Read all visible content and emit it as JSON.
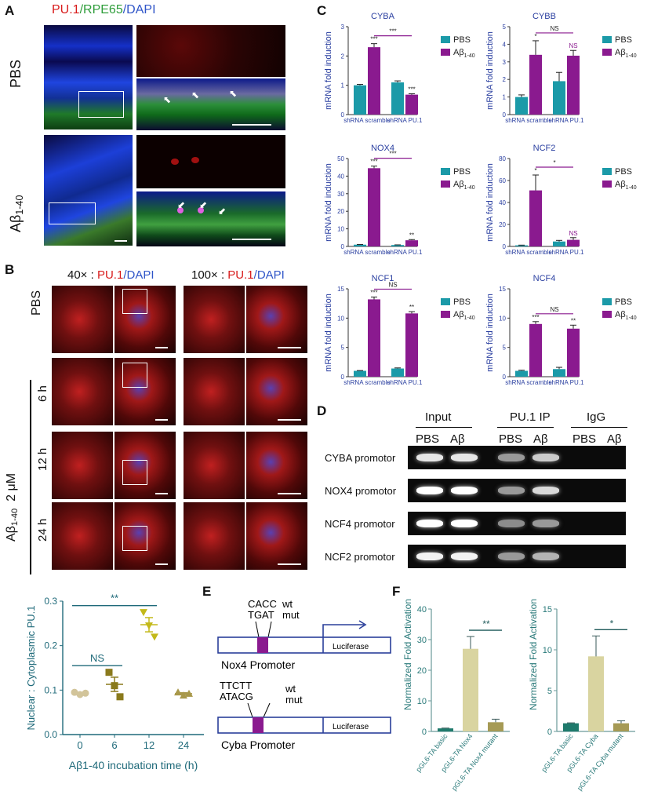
{
  "panelA": {
    "letter": "A",
    "title_parts": [
      "PU.1",
      "/RPE65",
      "/DAPI"
    ],
    "row1_label": "PBS",
    "row2_label_main": "Aβ",
    "row2_label_sub": "1-40"
  },
  "panelB": {
    "letter": "B",
    "h40_mag": "40× : ",
    "h40_pu1": "PU.1",
    "h40_dapi": "/DAPI",
    "h100_mag": "100× : ",
    "h100_pu1": "PU.1",
    "h100_dapi": "/DAPI",
    "rows": [
      "PBS",
      "6 h",
      "12 h",
      "24 h"
    ],
    "side_main": "Aβ",
    "side_sub": "1-40",
    "side_conc": "2 μM"
  },
  "panelC": {
    "letter": "C"
  },
  "panelD": {
    "letter": "D",
    "groups": [
      "Input",
      "PU.1 IP",
      "IgG"
    ],
    "lanes": [
      "PBS",
      "Aβ",
      "PBS",
      "Aβ",
      "PBS",
      "Aβ"
    ],
    "rows": [
      "CYBA promotor",
      "NOX4 promotor",
      "NCF4 promotor",
      "NCF2 promotor"
    ]
  },
  "panelE": {
    "letter": "E",
    "nox4_wt_seq": "CACC",
    "nox4_mut_seq": "TGAT",
    "cyba_wt_seq": "TTCTT",
    "cyba_mut_seq": "ATACG",
    "wt": "wt",
    "mut": "mut",
    "luciferase": "Luciferase",
    "nox4_promoter": "Nox4 Promoter",
    "cyba_promoter": "Cyba Promoter"
  },
  "panelF": {
    "letter": "F"
  },
  "chart_data": [
    {
      "id": "cyba",
      "type": "bar",
      "title": "CYBA",
      "ylabel": "mRNA fold induction",
      "ylim": [
        0,
        3
      ],
      "yticks": [
        0,
        1,
        2,
        3
      ],
      "categories": [
        "shRNA scramble",
        "shRNA PU.1"
      ],
      "series": [
        {
          "name": "PBS",
          "color": "#1b9aa8",
          "values": [
            1.0,
            1.1
          ],
          "errors": [
            0.03,
            0.05
          ],
          "sig": [
            "",
            ""
          ]
        },
        {
          "name": "Aβ1-40",
          "color": "#8a1a8f",
          "values": [
            2.3,
            0.68
          ],
          "errors": [
            0.12,
            0.03
          ],
          "sig": [
            "***",
            "***"
          ]
        }
      ],
      "bracket": "***"
    },
    {
      "id": "cybb",
      "type": "bar",
      "title": "CYBB",
      "ylabel": "mRNA fold induction",
      "ylim": [
        0,
        5
      ],
      "yticks": [
        0,
        1,
        2,
        3,
        4,
        5
      ],
      "categories": [
        "shRNA scramble",
        "shRNA PU.1"
      ],
      "series": [
        {
          "name": "PBS",
          "color": "#1b9aa8",
          "values": [
            1.0,
            1.9
          ],
          "errors": [
            0.12,
            0.5
          ],
          "sig": [
            "",
            ""
          ]
        },
        {
          "name": "Aβ1-40",
          "color": "#8a1a8f",
          "values": [
            3.4,
            3.35
          ],
          "errors": [
            0.8,
            0.3
          ],
          "sig": [
            "*",
            "NS"
          ]
        }
      ],
      "bracket": "NS"
    },
    {
      "id": "nox4",
      "type": "bar",
      "title": "NOX4",
      "ylabel": "mRNA fold induction",
      "ylim": [
        0,
        50
      ],
      "yticks": [
        0,
        10,
        20,
        30,
        40,
        50
      ],
      "categories": [
        "shRNA scramble",
        "shRNA PU.1"
      ],
      "series": [
        {
          "name": "PBS",
          "color": "#1b9aa8",
          "values": [
            1.0,
            0.8
          ],
          "errors": [
            0.1,
            0.1
          ],
          "sig": [
            "",
            ""
          ]
        },
        {
          "name": "Aβ1-40",
          "color": "#8a1a8f",
          "values": [
            44.5,
            3.5
          ],
          "errors": [
            1.2,
            0.4
          ],
          "sig": [
            "***",
            "**"
          ]
        }
      ],
      "bracket": "***"
    },
    {
      "id": "ncf2",
      "type": "bar",
      "title": "NCF2",
      "ylabel": "mRNA fold induction",
      "ylim": [
        0,
        80
      ],
      "yticks": [
        0,
        20,
        40,
        60,
        80
      ],
      "categories": [
        "shRNA scramble",
        "shRNA PU.1"
      ],
      "series": [
        {
          "name": "PBS",
          "color": "#1b9aa8",
          "values": [
            1.0,
            4.5
          ],
          "errors": [
            0.2,
            1.0
          ],
          "sig": [
            "",
            ""
          ]
        },
        {
          "name": "Aβ1-40",
          "color": "#8a1a8f",
          "values": [
            51.0,
            6.0
          ],
          "errors": [
            14.0,
            2.0
          ],
          "sig": [
            "*",
            "NS"
          ]
        }
      ],
      "bracket": "*"
    },
    {
      "id": "ncf1",
      "type": "bar",
      "title": "NCF1",
      "ylabel": "mRNA fold induction",
      "ylim": [
        0,
        15
      ],
      "yticks": [
        0,
        5,
        10,
        15
      ],
      "categories": [
        "shRNA scramble",
        "shRNA PU.1"
      ],
      "series": [
        {
          "name": "PBS",
          "color": "#1b9aa8",
          "values": [
            1.0,
            1.4
          ],
          "errors": [
            0.05,
            0.1
          ],
          "sig": [
            "",
            ""
          ]
        },
        {
          "name": "Aβ1-40",
          "color": "#8a1a8f",
          "values": [
            13.2,
            10.8
          ],
          "errors": [
            0.4,
            0.3
          ],
          "sig": [
            "***",
            "**"
          ]
        }
      ],
      "bracket": "NS"
    },
    {
      "id": "ncf4",
      "type": "bar",
      "title": "NCF4",
      "ylabel": "mRNA fold induction",
      "ylim": [
        0,
        15
      ],
      "yticks": [
        0,
        5,
        10,
        15
      ],
      "categories": [
        "shRNA scramble",
        "shRNA PU.1"
      ],
      "series": [
        {
          "name": "PBS",
          "color": "#1b9aa8",
          "values": [
            1.0,
            1.3
          ],
          "errors": [
            0.1,
            0.3
          ],
          "sig": [
            "",
            ""
          ]
        },
        {
          "name": "Aβ1-40",
          "color": "#8a1a8f",
          "values": [
            9.0,
            8.2
          ],
          "errors": [
            0.4,
            0.6
          ],
          "sig": [
            "***",
            "**"
          ]
        }
      ],
      "bracket": "NS"
    },
    {
      "id": "nuc",
      "type": "scatter",
      "title": "",
      "xlabel": "Aβ1-40 incubation time (h)",
      "ylabel": "Nuclear : Cytoplasmic PU.1",
      "ylim": [
        0.0,
        0.3
      ],
      "yticks": [
        0.0,
        0.1,
        0.2,
        0.3
      ],
      "categories": [
        "0",
        "6",
        "12",
        "24"
      ],
      "colors": [
        "#d2c49a",
        "#8a7a1c",
        "#c3b91a",
        "#a8984a"
      ],
      "shapes": [
        "circle",
        "square",
        "triangle-down",
        "triangle-up"
      ],
      "points": [
        [
          0.095,
          0.09,
          0.093
        ],
        [
          0.14,
          0.11,
          0.085
        ],
        [
          0.275,
          0.245,
          0.22
        ],
        [
          0.095,
          0.088,
          0.092
        ]
      ],
      "means": [
        0.093,
        0.113,
        0.247,
        0.092
      ],
      "sems": [
        0.0015,
        0.016,
        0.016,
        0.002
      ],
      "brackets": [
        {
          "from": 0,
          "to": 1,
          "label": "NS"
        },
        {
          "from": 0,
          "to": 2,
          "label": "**"
        }
      ]
    },
    {
      "id": "nox4luc",
      "type": "bar",
      "title": "",
      "ylabel": "Normalized Fold Activation",
      "ylim": [
        0,
        40
      ],
      "yticks": [
        0,
        10,
        20,
        30,
        40
      ],
      "categories": [
        "pGL6-TA basic",
        "pGL6-TA Nox4",
        "pGL6-TA Nox4 mutant"
      ],
      "colors": [
        "#1f7a6c",
        "#d9d4a0",
        "#a69a55"
      ],
      "values": [
        1.0,
        27.0,
        3.0
      ],
      "errors": [
        0.1,
        4.0,
        1.0
      ],
      "bracket": {
        "from": 1,
        "to": 2,
        "label": "**"
      }
    },
    {
      "id": "cybaluc",
      "type": "bar",
      "title": "",
      "ylabel": "Normalized Fold Activation",
      "ylim": [
        0,
        15
      ],
      "yticks": [
        0,
        5,
        10,
        15
      ],
      "categories": [
        "pGL6-TA basic",
        "pGL6-TA Cyba",
        "pGL6-TA Cyba mutant"
      ],
      "colors": [
        "#1f7a6c",
        "#d9d4a0",
        "#a69a55"
      ],
      "values": [
        1.0,
        9.2,
        1.0
      ],
      "errors": [
        0.05,
        2.5,
        0.3
      ],
      "bracket": {
        "from": 1,
        "to": 2,
        "label": "*"
      }
    }
  ]
}
